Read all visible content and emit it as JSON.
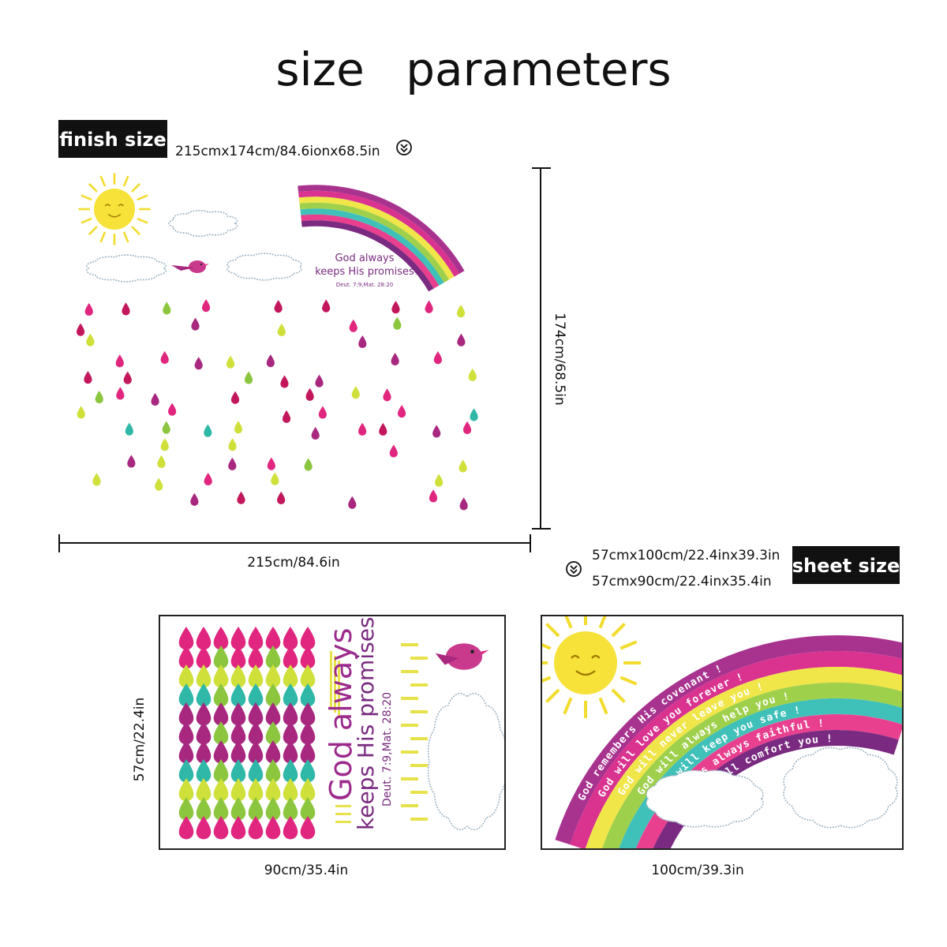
{
  "header": {
    "title": "size parameters"
  },
  "finish": {
    "label": "finish size",
    "dimensions": "215cmx174cm/84.6ionx68.5in",
    "height": "174cm/68.5in",
    "width": "215cm/84.6in"
  },
  "artwork": {
    "heading": "God always",
    "subheading": "keeps His promises",
    "reference": "Deut. 7:9,Mat. 28:20"
  },
  "sheets": {
    "label": "sheet size",
    "options": [
      "57cmx100cm/22.4inx39.3in",
      "57cmx90cm/22.4inx35.4in"
    ],
    "height": "57cm/22.4in",
    "widths": [
      "90cm/35.4in",
      "100cm/39.3in"
    ]
  },
  "rainbow": {
    "lines": [
      "God remembers His covenant !",
      "God will love you forever !",
      "God will never leave you !",
      "God will always help you !",
      "God will keep you safe !",
      "God is always faithful !",
      "God will comfort you !"
    ]
  }
}
